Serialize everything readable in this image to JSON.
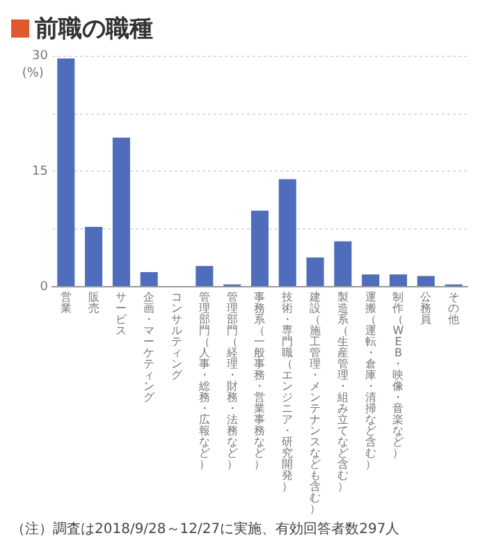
{
  "chart_data": {
    "type": "bar",
    "title": "前職の職種",
    "ylabel": "(%)",
    "categories": [
      "営業",
      "販売",
      "サービス",
      "企画・マーケティング",
      "コンサルティング",
      "管理部門（人事・総務・広報など）",
      "管理部門（経理・財務・法務など）",
      "事務系（一般事務・営業事務など）",
      "技術・専門職（エンジニア・研究開発）",
      "建設（施工管理・メンテナンスなども含む）",
      "製造系（生産管理・組み立てなど含む）",
      "運搬（運転・倉庫・清掃など含む）",
      "制作（WEB・映像・音楽など）",
      "公務員",
      "その他"
    ],
    "values": [
      29.7,
      7.8,
      19.4,
      1.9,
      0,
      2.7,
      0.3,
      9.9,
      14,
      3.8,
      5.9,
      1.6,
      1.6,
      1.4,
      0.3
    ],
    "color": "#4f6dba",
    "ylim": [
      0,
      30
    ],
    "yticks": [
      0,
      {
        "value": 7.5,
        "label": null
      },
      15,
      {
        "value": 22.5,
        "label": null
      },
      30
    ],
    "grid": "y",
    "legend": false,
    "annotations": [
      "（注）調査は2018/9/28～12/27に実施、有効回答者数297人"
    ]
  }
}
